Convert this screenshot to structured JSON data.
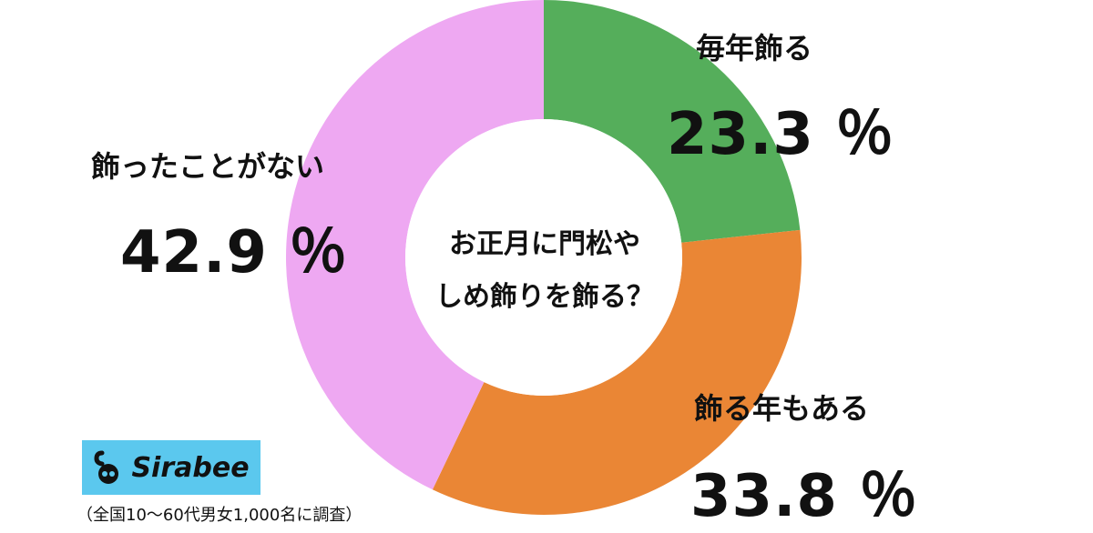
{
  "chart_data": {
    "type": "pie",
    "donut": true,
    "center_text": [
      "お正月に門松や",
      "しめ飾りを飾る？"
    ],
    "slices": [
      {
        "label": "毎年飾る",
        "value": 23.3,
        "value_label": "23.3 ％",
        "color": "#55ae5b"
      },
      {
        "label": "飾る年もある",
        "value": 33.8,
        "value_label": "33.8 ％",
        "color": "#ea8635"
      },
      {
        "label": "飾ったことがない",
        "value": 42.9,
        "value_label": "42.9 ％",
        "color": "#eea8f2"
      }
    ]
  },
  "logo": {
    "text": "Sirabee"
  },
  "footnote": "（全国10〜60代男女1,000名に調査）"
}
